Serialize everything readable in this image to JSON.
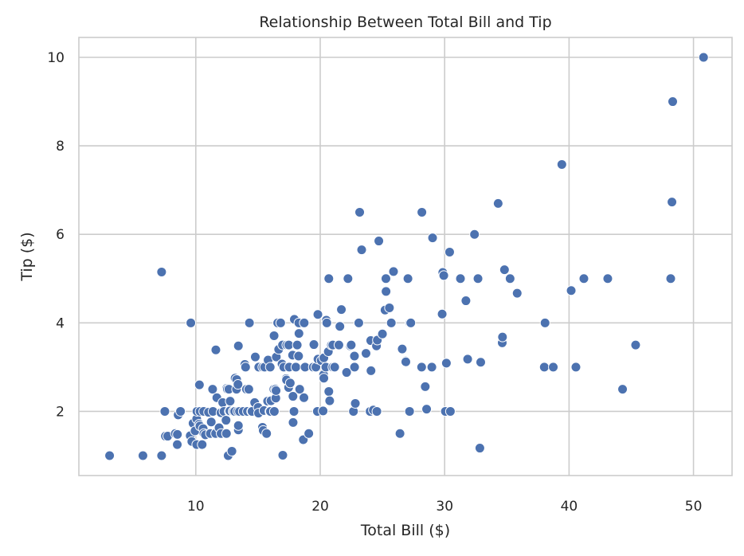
{
  "chart_data": {
    "type": "scatter",
    "title": "Relationship Between Total Bill and Tip",
    "xlabel": "Total Bill ($)",
    "ylabel": "Tip ($)",
    "xlim": [
      0.6,
      53.1
    ],
    "ylim": [
      0.55,
      10.45
    ],
    "xticks": [
      10,
      20,
      30,
      40,
      50
    ],
    "yticks": [
      2,
      4,
      6,
      8,
      10
    ],
    "grid": true,
    "marker_color": "#4C72B0",
    "points": [
      [
        3.07,
        1.0
      ],
      [
        5.75,
        1.0
      ],
      [
        7.25,
        1.0
      ],
      [
        7.25,
        5.15
      ],
      [
        7.51,
        2.0
      ],
      [
        7.56,
        1.44
      ],
      [
        7.74,
        1.44
      ],
      [
        8.35,
        1.5
      ],
      [
        8.51,
        1.25
      ],
      [
        8.52,
        1.48
      ],
      [
        8.58,
        1.92
      ],
      [
        8.77,
        2.0
      ],
      [
        9.55,
        1.45
      ],
      [
        9.6,
        4.0
      ],
      [
        9.68,
        1.32
      ],
      [
        9.78,
        1.73
      ],
      [
        9.94,
        1.56
      ],
      [
        10.07,
        1.83
      ],
      [
        10.07,
        1.25
      ],
      [
        10.09,
        2.0
      ],
      [
        10.27,
        1.71
      ],
      [
        10.29,
        2.6
      ],
      [
        10.33,
        1.67
      ],
      [
        10.34,
        2.0
      ],
      [
        10.51,
        1.25
      ],
      [
        10.59,
        1.61
      ],
      [
        10.63,
        2.0
      ],
      [
        10.65,
        1.5
      ],
      [
        10.77,
        1.47
      ],
      [
        11.02,
        1.98
      ],
      [
        11.17,
        1.5
      ],
      [
        11.24,
        1.76
      ],
      [
        11.35,
        2.5
      ],
      [
        11.38,
        2.0
      ],
      [
        11.59,
        1.5
      ],
      [
        11.61,
        3.39
      ],
      [
        11.69,
        2.31
      ],
      [
        11.87,
        1.63
      ],
      [
        12.02,
        1.97
      ],
      [
        12.03,
        1.5
      ],
      [
        12.16,
        2.2
      ],
      [
        12.26,
        2.0
      ],
      [
        12.43,
        1.8
      ],
      [
        12.46,
        1.5
      ],
      [
        12.48,
        2.52
      ],
      [
        12.54,
        2.5
      ],
      [
        12.6,
        1.0
      ],
      [
        12.66,
        2.5
      ],
      [
        12.69,
        2.0
      ],
      [
        12.74,
        2.01
      ],
      [
        12.76,
        2.23
      ],
      [
        12.9,
        1.1
      ],
      [
        13.0,
        2.0
      ],
      [
        13.03,
        2.0
      ],
      [
        13.13,
        2.0
      ],
      [
        13.16,
        2.75
      ],
      [
        13.27,
        2.5
      ],
      [
        13.28,
        2.72
      ],
      [
        13.37,
        2.0
      ],
      [
        13.39,
        2.61
      ],
      [
        13.42,
        1.58
      ],
      [
        13.42,
        3.48
      ],
      [
        13.42,
        1.68
      ],
      [
        13.51,
        2.0
      ],
      [
        13.81,
        2.0
      ],
      [
        13.94,
        3.06
      ],
      [
        14.0,
        3.0
      ],
      [
        14.07,
        2.5
      ],
      [
        14.15,
        2.0
      ],
      [
        14.26,
        2.5
      ],
      [
        14.31,
        4.0
      ],
      [
        14.48,
        2.0
      ],
      [
        14.52,
        2.0
      ],
      [
        14.73,
        2.2
      ],
      [
        14.78,
        3.23
      ],
      [
        15.01,
        2.09
      ],
      [
        15.04,
        1.96
      ],
      [
        15.06,
        3.0
      ],
      [
        15.36,
        1.64
      ],
      [
        15.38,
        3.0
      ],
      [
        15.42,
        1.57
      ],
      [
        15.48,
        2.02
      ],
      [
        15.53,
        3.0
      ],
      [
        15.69,
        1.5
      ],
      [
        15.77,
        2.23
      ],
      [
        15.81,
        3.16
      ],
      [
        15.95,
        2.0
      ],
      [
        15.98,
        3.0
      ],
      [
        16.0,
        2.0
      ],
      [
        16.04,
        2.24
      ],
      [
        16.27,
        2.5
      ],
      [
        16.29,
        3.71
      ],
      [
        16.31,
        2.0
      ],
      [
        16.4,
        2.5
      ],
      [
        16.43,
        2.3
      ],
      [
        16.45,
        2.47
      ],
      [
        16.47,
        3.23
      ],
      [
        16.58,
        4.0
      ],
      [
        16.66,
        3.4
      ],
      [
        16.82,
        4.0
      ],
      [
        16.93,
        3.07
      ],
      [
        16.97,
        3.5
      ],
      [
        16.99,
        1.01
      ],
      [
        17.07,
        3.0
      ],
      [
        17.26,
        2.74
      ],
      [
        17.29,
        2.71
      ],
      [
        17.31,
        3.5
      ],
      [
        17.46,
        2.54
      ],
      [
        17.47,
        3.5
      ],
      [
        17.51,
        3.0
      ],
      [
        17.59,
        2.64
      ],
      [
        17.78,
        3.27
      ],
      [
        17.81,
        2.34
      ],
      [
        17.82,
        1.75
      ],
      [
        17.89,
        2.0
      ],
      [
        17.92,
        4.08
      ],
      [
        18.04,
        3.0
      ],
      [
        18.15,
        3.5
      ],
      [
        18.24,
        3.76
      ],
      [
        18.26,
        3.25
      ],
      [
        18.28,
        4.0
      ],
      [
        18.29,
        3.76
      ],
      [
        18.35,
        2.5
      ],
      [
        18.64,
        1.36
      ],
      [
        18.69,
        2.31
      ],
      [
        18.71,
        4.0
      ],
      [
        18.78,
        3.0
      ],
      [
        19.08,
        1.5
      ],
      [
        19.44,
        3.0
      ],
      [
        19.49,
        3.51
      ],
      [
        19.65,
        3.0
      ],
      [
        19.77,
        2.0
      ],
      [
        19.81,
        4.19
      ],
      [
        19.82,
        3.18
      ],
      [
        20.08,
        3.15
      ],
      [
        20.23,
        2.01
      ],
      [
        20.27,
        2.83
      ],
      [
        20.29,
        2.75
      ],
      [
        20.29,
        3.21
      ],
      [
        20.45,
        3.0
      ],
      [
        20.49,
        4.06
      ],
      [
        20.53,
        4.0
      ],
      [
        20.65,
        3.35
      ],
      [
        20.69,
        5.0
      ],
      [
        20.69,
        2.45
      ],
      [
        20.76,
        2.24
      ],
      [
        20.9,
        3.5
      ],
      [
        21.01,
        3.0
      ],
      [
        21.01,
        3.5
      ],
      [
        21.16,
        3.0
      ],
      [
        21.5,
        3.5
      ],
      [
        21.58,
        3.92
      ],
      [
        21.7,
        4.3
      ],
      [
        22.12,
        2.88
      ],
      [
        22.23,
        5.0
      ],
      [
        22.42,
        3.48
      ],
      [
        22.49,
        3.5
      ],
      [
        22.67,
        2.0
      ],
      [
        22.75,
        3.25
      ],
      [
        22.76,
        3.0
      ],
      [
        22.82,
        2.18
      ],
      [
        23.1,
        4.0
      ],
      [
        23.17,
        6.5
      ],
      [
        23.33,
        5.65
      ],
      [
        23.68,
        3.31
      ],
      [
        24.01,
        2.0
      ],
      [
        24.06,
        3.6
      ],
      [
        24.08,
        2.92
      ],
      [
        24.27,
        2.03
      ],
      [
        24.52,
        3.48
      ],
      [
        24.55,
        2.0
      ],
      [
        24.59,
        3.61
      ],
      [
        24.71,
        5.85
      ],
      [
        25.0,
        3.75
      ],
      [
        25.21,
        4.29
      ],
      [
        25.28,
        5.0
      ],
      [
        25.29,
        4.71
      ],
      [
        25.56,
        4.34
      ],
      [
        25.71,
        4.0
      ],
      [
        25.89,
        5.16
      ],
      [
        26.41,
        1.5
      ],
      [
        26.59,
        3.41
      ],
      [
        26.86,
        3.14
      ],
      [
        26.88,
        3.12
      ],
      [
        27.05,
        5.0
      ],
      [
        27.18,
        2.0
      ],
      [
        27.2,
        4.0
      ],
      [
        27.28,
        4.0
      ],
      [
        28.15,
        3.0
      ],
      [
        28.17,
        6.5
      ],
      [
        28.44,
        2.56
      ],
      [
        28.55,
        2.05
      ],
      [
        28.97,
        3.0
      ],
      [
        29.03,
        5.92
      ],
      [
        29.8,
        4.2
      ],
      [
        29.85,
        5.14
      ],
      [
        29.93,
        5.07
      ],
      [
        30.06,
        2.0
      ],
      [
        30.14,
        3.09
      ],
      [
        30.4,
        5.6
      ],
      [
        30.46,
        2.0
      ],
      [
        31.27,
        5.0
      ],
      [
        31.71,
        4.5
      ],
      [
        31.85,
        3.18
      ],
      [
        32.4,
        6.0
      ],
      [
        32.68,
        5.0
      ],
      [
        32.83,
        1.17
      ],
      [
        32.9,
        3.11
      ],
      [
        34.3,
        6.7
      ],
      [
        34.63,
        3.55
      ],
      [
        34.65,
        3.68
      ],
      [
        34.81,
        5.2
      ],
      [
        35.26,
        5.0
      ],
      [
        35.83,
        4.67
      ],
      [
        38.01,
        3.0
      ],
      [
        38.07,
        4.0
      ],
      [
        38.73,
        3.0
      ],
      [
        39.42,
        7.58
      ],
      [
        40.17,
        4.73
      ],
      [
        40.55,
        3.0
      ],
      [
        41.19,
        5.0
      ],
      [
        43.11,
        5.0
      ],
      [
        44.3,
        2.5
      ],
      [
        45.35,
        3.5
      ],
      [
        48.17,
        5.0
      ],
      [
        48.27,
        6.73
      ],
      [
        48.33,
        9.0
      ],
      [
        50.81,
        10.0
      ]
    ]
  }
}
